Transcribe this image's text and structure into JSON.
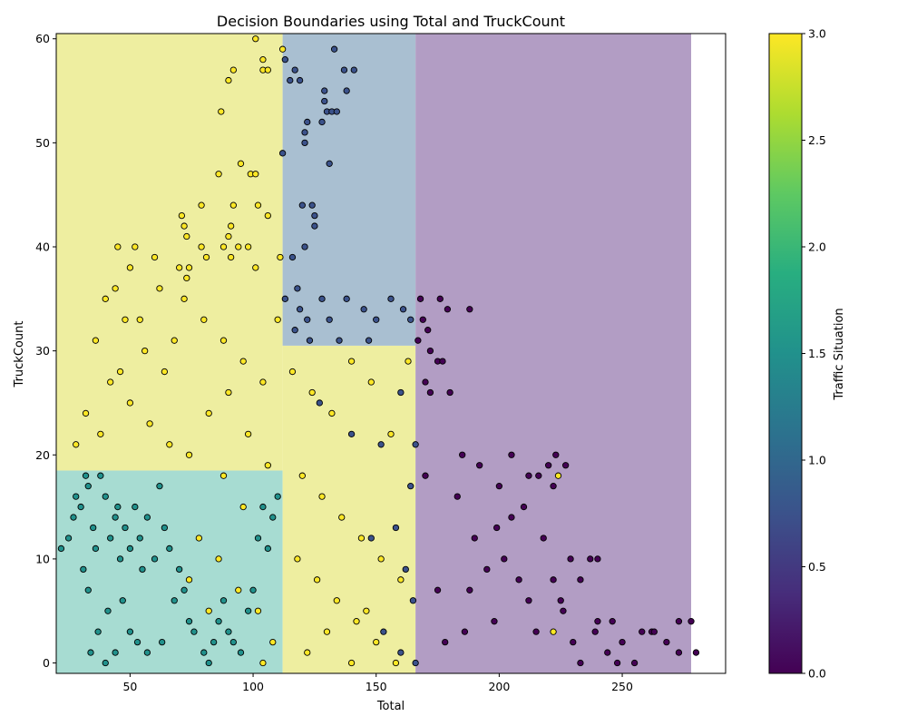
{
  "chart_data": {
    "type": "scatter",
    "title": "Decision Boundaries using Total and TruckCount",
    "xlabel": "Total",
    "ylabel": "TruckCount",
    "xlim": [
      20,
      292
    ],
    "ylim": [
      -1,
      60.5
    ],
    "x_ticks": [
      50,
      100,
      150,
      200,
      250
    ],
    "y_ticks": [
      0,
      10,
      20,
      30,
      40,
      50,
      60
    ],
    "grid": false,
    "colorbar": {
      "label": "Traffic Situation",
      "colormap": "viridis",
      "range": [
        0,
        3
      ],
      "ticks": [
        0.0,
        0.5,
        1.0,
        1.5,
        2.0,
        2.5,
        3.0
      ],
      "tick_labels": [
        "0.0",
        "0.5",
        "1.0",
        "1.5",
        "2.0",
        "2.5",
        "3.0"
      ]
    },
    "regions": [
      {
        "class": 2,
        "x": [
          20,
          112
        ],
        "y": [
          -1,
          18.5
        ],
        "color": "#a7dcd2"
      },
      {
        "class": 3,
        "x": [
          20,
          112
        ],
        "y": [
          18.5,
          60.5
        ],
        "color": "#eeeea0"
      },
      {
        "class": 3,
        "x": [
          112,
          166
        ],
        "y": [
          -1,
          30.5
        ],
        "color": "#eeeea0"
      },
      {
        "class": 1,
        "x": [
          112,
          166
        ],
        "y": [
          30.5,
          60.5
        ],
        "color": "#a9bfd1"
      },
      {
        "class": 0,
        "x": [
          166,
          278
        ],
        "y": [
          -1,
          60.5
        ],
        "color": "#b29dc4"
      }
    ],
    "series": [
      {
        "class": 0,
        "color": "#440154",
        "points": [
          [
            168,
            35
          ],
          [
            171,
            32
          ],
          [
            172,
            30
          ],
          [
            175,
            29
          ],
          [
            177,
            29
          ],
          [
            176,
            35
          ],
          [
            179,
            34
          ],
          [
            180,
            26
          ],
          [
            188,
            34
          ],
          [
            172,
            26
          ],
          [
            169,
            33
          ],
          [
            167,
            31
          ],
          [
            170,
            27
          ],
          [
            185,
            20
          ],
          [
            192,
            19
          ],
          [
            205,
            20
          ],
          [
            216,
            18
          ],
          [
            220,
            19
          ],
          [
            223,
            20
          ],
          [
            227,
            19
          ],
          [
            200,
            17
          ],
          [
            210,
            15
          ],
          [
            218,
            12
          ],
          [
            229,
            10
          ],
          [
            237,
            10
          ],
          [
            240,
            10
          ],
          [
            222,
            8
          ],
          [
            233,
            8
          ],
          [
            246,
            4
          ],
          [
            258,
            3
          ],
          [
            262,
            3
          ],
          [
            273,
            4
          ],
          [
            278,
            4
          ],
          [
            280,
            1
          ],
          [
            273,
            1
          ],
          [
            255,
            0
          ],
          [
            244,
            1
          ],
          [
            233,
            0
          ],
          [
            250,
            2
          ],
          [
            239,
            3
          ],
          [
            226,
            5
          ],
          [
            212,
            6
          ],
          [
            198,
            4
          ],
          [
            186,
            3
          ],
          [
            178,
            2
          ],
          [
            190,
            12
          ],
          [
            205,
            14
          ],
          [
            183,
            16
          ],
          [
            170,
            18
          ],
          [
            195,
            9
          ],
          [
            215,
            3
          ],
          [
            230,
            2
          ],
          [
            248,
            0
          ],
          [
            268,
            2
          ],
          [
            202,
            10
          ],
          [
            175,
            7
          ],
          [
            188,
            7
          ],
          [
            208,
            8
          ],
          [
            225,
            6
          ],
          [
            240,
            4
          ],
          [
            263,
            3
          ],
          [
            222,
            17
          ],
          [
            212,
            18
          ],
          [
            199,
            13
          ]
        ]
      },
      {
        "class": 1,
        "color": "#3b528b",
        "points": [
          [
            112,
            49
          ],
          [
            113,
            58
          ],
          [
            115,
            56
          ],
          [
            117,
            57
          ],
          [
            119,
            56
          ],
          [
            120,
            44
          ],
          [
            124,
            44
          ],
          [
            125,
            43
          ],
          [
            125,
            42
          ],
          [
            122,
            52
          ],
          [
            121,
            51
          ],
          [
            121,
            50
          ],
          [
            128,
            52
          ],
          [
            129,
            54
          ],
          [
            129,
            55
          ],
          [
            130,
            53
          ],
          [
            132,
            53
          ],
          [
            134,
            53
          ],
          [
            133,
            59
          ],
          [
            137,
            57
          ],
          [
            138,
            55
          ],
          [
            141,
            57
          ],
          [
            131,
            48
          ],
          [
            121,
            40
          ],
          [
            116,
            39
          ],
          [
            118,
            36
          ],
          [
            113,
            35
          ],
          [
            119,
            34
          ],
          [
            122,
            33
          ],
          [
            128,
            35
          ],
          [
            131,
            33
          ],
          [
            138,
            35
          ],
          [
            145,
            34
          ],
          [
            150,
            33
          ],
          [
            156,
            35
          ],
          [
            161,
            34
          ],
          [
            164,
            33
          ],
          [
            117,
            32
          ],
          [
            123,
            31
          ],
          [
            135,
            31
          ],
          [
            147,
            31
          ],
          [
            127,
            25
          ],
          [
            140,
            22
          ],
          [
            152,
            21
          ],
          [
            160,
            26
          ],
          [
            166,
            21
          ],
          [
            164,
            17
          ],
          [
            158,
            13
          ],
          [
            162,
            9
          ],
          [
            165,
            6
          ],
          [
            160,
            1
          ],
          [
            166,
            0
          ],
          [
            153,
            3
          ],
          [
            148,
            12
          ]
        ]
      },
      {
        "class": 2,
        "color": "#21918c",
        "points": [
          [
            22,
            11
          ],
          [
            25,
            12
          ],
          [
            27,
            14
          ],
          [
            28,
            16
          ],
          [
            30,
            15
          ],
          [
            32,
            18
          ],
          [
            33,
            17
          ],
          [
            35,
            13
          ],
          [
            36,
            11
          ],
          [
            38,
            18
          ],
          [
            40,
            16
          ],
          [
            42,
            12
          ],
          [
            44,
            14
          ],
          [
            45,
            15
          ],
          [
            46,
            10
          ],
          [
            48,
            13
          ],
          [
            50,
            11
          ],
          [
            52,
            15
          ],
          [
            54,
            12
          ],
          [
            55,
            9
          ],
          [
            57,
            14
          ],
          [
            60,
            10
          ],
          [
            62,
            17
          ],
          [
            64,
            13
          ],
          [
            66,
            11
          ],
          [
            68,
            6
          ],
          [
            70,
            9
          ],
          [
            72,
            7
          ],
          [
            74,
            4
          ],
          [
            76,
            3
          ],
          [
            80,
            1
          ],
          [
            82,
            0
          ],
          [
            84,
            2
          ],
          [
            86,
            4
          ],
          [
            88,
            6
          ],
          [
            90,
            3
          ],
          [
            92,
            2
          ],
          [
            95,
            1
          ],
          [
            98,
            5
          ],
          [
            100,
            7
          ],
          [
            102,
            12
          ],
          [
            104,
            15
          ],
          [
            106,
            11
          ],
          [
            108,
            14
          ],
          [
            110,
            16
          ],
          [
            34,
            1
          ],
          [
            37,
            3
          ],
          [
            41,
            5
          ],
          [
            44,
            1
          ],
          [
            47,
            6
          ],
          [
            50,
            3
          ],
          [
            53,
            2
          ],
          [
            57,
            1
          ],
          [
            33,
            7
          ],
          [
            31,
            9
          ],
          [
            40,
            0
          ],
          [
            63,
            2
          ]
        ]
      },
      {
        "class": 3,
        "color": "#fde725",
        "points": [
          [
            101,
            60
          ],
          [
            104,
            58
          ],
          [
            104,
            57
          ],
          [
            106,
            57
          ],
          [
            112,
            59
          ],
          [
            90,
            56
          ],
          [
            92,
            57
          ],
          [
            87,
            53
          ],
          [
            86,
            47
          ],
          [
            95,
            48
          ],
          [
            99,
            47
          ],
          [
            101,
            47
          ],
          [
            102,
            44
          ],
          [
            92,
            44
          ],
          [
            79,
            44
          ],
          [
            106,
            43
          ],
          [
            91,
            42
          ],
          [
            90,
            41
          ],
          [
            72,
            42
          ],
          [
            73,
            41
          ],
          [
            71,
            43
          ],
          [
            88,
            40
          ],
          [
            94,
            40
          ],
          [
            98,
            40
          ],
          [
            101,
            38
          ],
          [
            79,
            40
          ],
          [
            81,
            39
          ],
          [
            91,
            39
          ],
          [
            111,
            39
          ],
          [
            70,
            38
          ],
          [
            74,
            38
          ],
          [
            73,
            37
          ],
          [
            45,
            40
          ],
          [
            52,
            40
          ],
          [
            60,
            39
          ],
          [
            40,
            35
          ],
          [
            48,
            33
          ],
          [
            56,
            30
          ],
          [
            64,
            28
          ],
          [
            72,
            35
          ],
          [
            80,
            33
          ],
          [
            88,
            31
          ],
          [
            96,
            29
          ],
          [
            104,
            27
          ],
          [
            110,
            33
          ],
          [
            36,
            31
          ],
          [
            42,
            27
          ],
          [
            50,
            25
          ],
          [
            58,
            23
          ],
          [
            66,
            21
          ],
          [
            74,
            20
          ],
          [
            82,
            24
          ],
          [
            90,
            26
          ],
          [
            98,
            22
          ],
          [
            106,
            19
          ],
          [
            116,
            28
          ],
          [
            124,
            26
          ],
          [
            132,
            24
          ],
          [
            140,
            29
          ],
          [
            148,
            27
          ],
          [
            156,
            22
          ],
          [
            163,
            29
          ],
          [
            120,
            18
          ],
          [
            128,
            16
          ],
          [
            136,
            14
          ],
          [
            144,
            12
          ],
          [
            152,
            10
          ],
          [
            160,
            8
          ],
          [
            118,
            10
          ],
          [
            126,
            8
          ],
          [
            134,
            6
          ],
          [
            142,
            4
          ],
          [
            150,
            2
          ],
          [
            158,
            0
          ],
          [
            122,
            1
          ],
          [
            130,
            3
          ],
          [
            140,
            0
          ],
          [
            146,
            5
          ],
          [
            78,
            12
          ],
          [
            86,
            10
          ],
          [
            94,
            7
          ],
          [
            102,
            5
          ],
          [
            108,
            2
          ],
          [
            74,
            8
          ],
          [
            82,
            5
          ],
          [
            96,
            15
          ],
          [
            104,
            0
          ],
          [
            88,
            18
          ],
          [
            28,
            21
          ],
          [
            32,
            24
          ],
          [
            38,
            22
          ],
          [
            46,
            28
          ],
          [
            54,
            33
          ],
          [
            62,
            36
          ],
          [
            68,
            31
          ],
          [
            44,
            36
          ],
          [
            50,
            38
          ],
          [
            224,
            18
          ],
          [
            222,
            3
          ]
        ]
      }
    ]
  }
}
